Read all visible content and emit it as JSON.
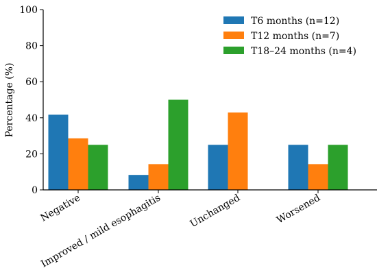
{
  "chart_data": {
    "type": "bar",
    "title": "",
    "xlabel": "",
    "ylabel": "Percentage (%)",
    "ylim": [
      0,
      100
    ],
    "yticks": [
      "0",
      "20",
      "40",
      "60",
      "80",
      "100"
    ],
    "categories": [
      "Negative",
      "Improved / mild esophagitis",
      "Unchanged",
      "Worsened"
    ],
    "series": [
      {
        "name": "T6 months (n=12)",
        "color": "#1f77b4",
        "values": [
          41.7,
          8.3,
          25.0,
          25.0
        ]
      },
      {
        "name": "T12 months (n=7)",
        "color": "#ff7f0e",
        "values": [
          28.6,
          14.3,
          42.9,
          14.3
        ]
      },
      {
        "name": "T18–24 months (n=4)",
        "color": "#2ca02c",
        "values": [
          25.0,
          50.0,
          0,
          25.0
        ]
      }
    ],
    "grid": false,
    "legend_position": "top-right"
  }
}
